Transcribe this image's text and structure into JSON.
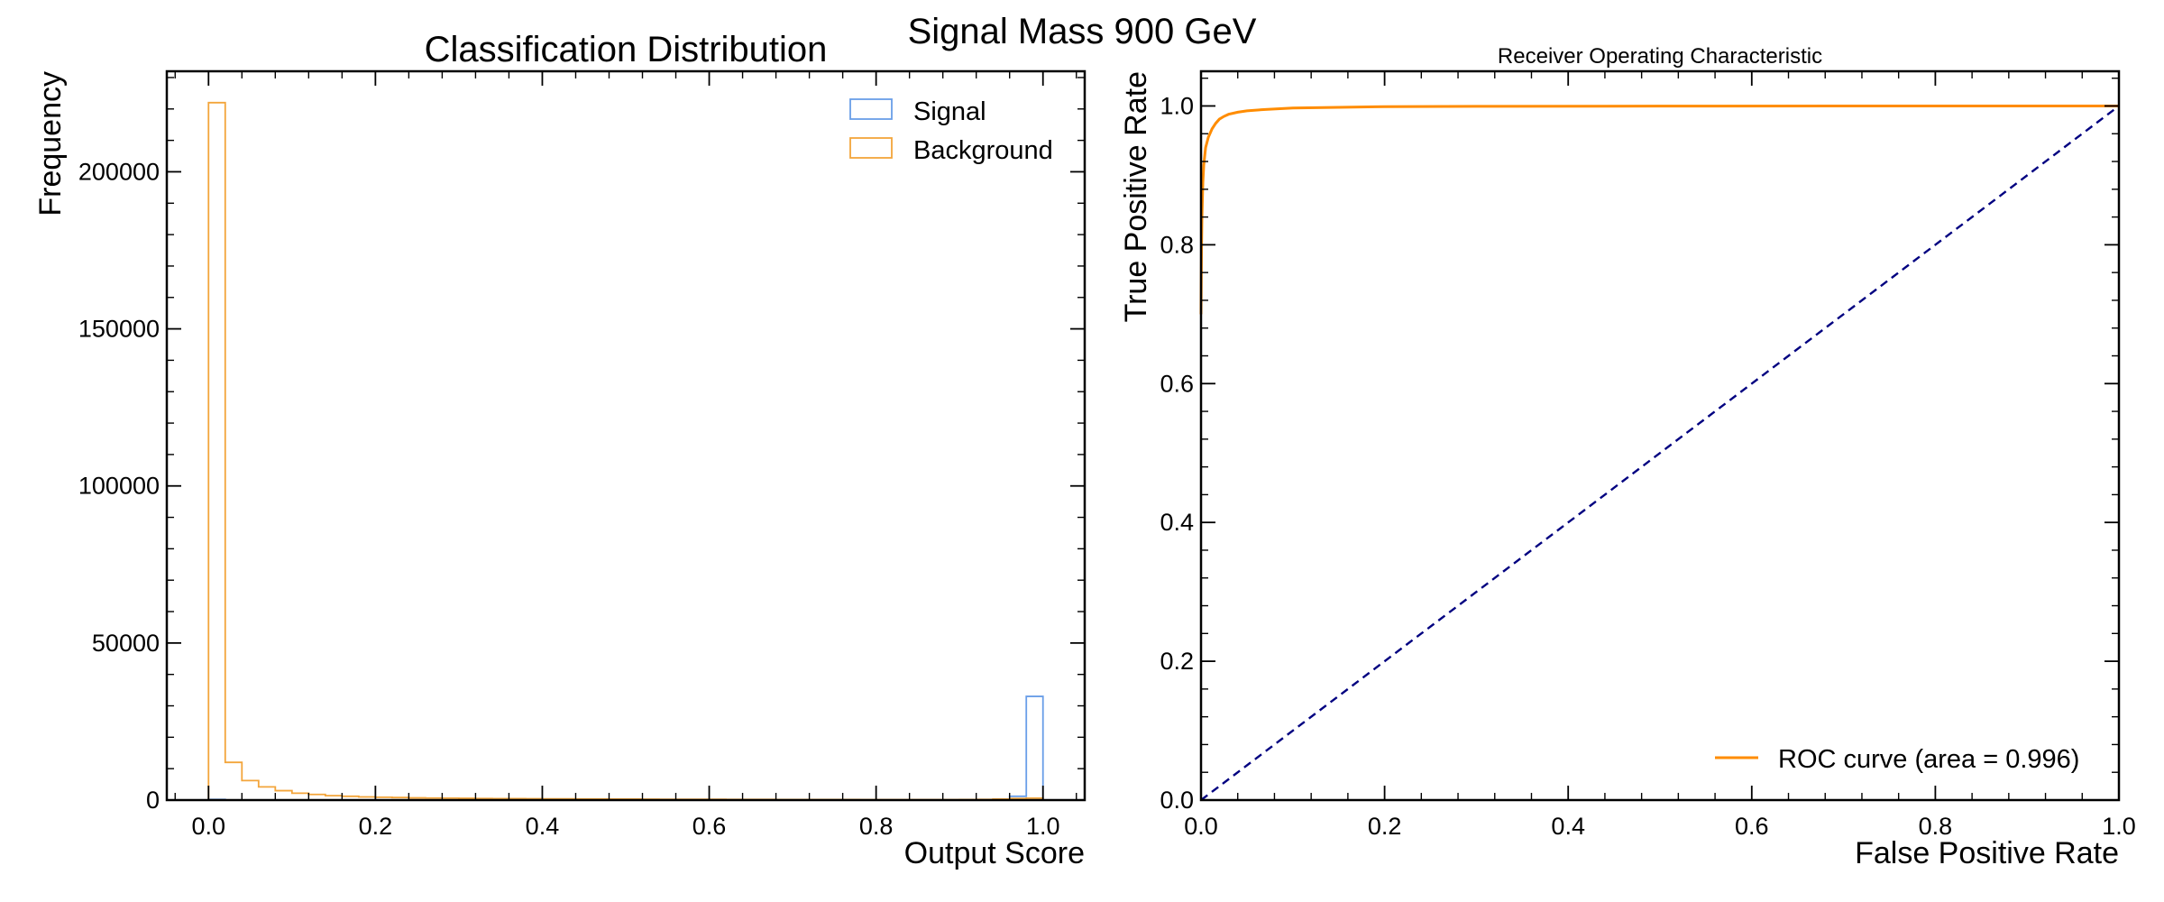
{
  "figure": {
    "suptitle": "Signal Mass 900 GeV"
  },
  "colors": {
    "signal": "#6a9ee8",
    "background": "#f3a53b",
    "roc": "#ff8c00",
    "diagonal": "#000080",
    "axes": "#000000"
  },
  "chart_data": [
    {
      "type": "histogram",
      "title": "Classification Distribution",
      "xlabel": "Output Score",
      "ylabel": "Frequency",
      "xlim": [
        -0.05,
        1.05
      ],
      "ylim": [
        0,
        232000
      ],
      "xticks": [
        0.0,
        0.2,
        0.4,
        0.6,
        0.8,
        1.0
      ],
      "xtick_labels": [
        "0.0",
        "0.2",
        "0.4",
        "0.6",
        "0.8",
        "1.0"
      ],
      "yticks": [
        0,
        50000,
        100000,
        150000,
        200000
      ],
      "ytick_labels": [
        "0",
        "50000",
        "100000",
        "150000",
        "200000"
      ],
      "legend_position": "top-right",
      "bin_edges_start": 0.0,
      "bin_width": 0.02,
      "series": [
        {
          "name": "Signal",
          "color": "#6a9ee8",
          "values": [
            200,
            0,
            0,
            0,
            0,
            0,
            0,
            0,
            0,
            0,
            0,
            0,
            0,
            0,
            0,
            0,
            0,
            0,
            0,
            0,
            0,
            0,
            0,
            0,
            0,
            0,
            0,
            0,
            0,
            0,
            0,
            0,
            0,
            0,
            0,
            0,
            0,
            0,
            0,
            0,
            0,
            0,
            0,
            0,
            0,
            0,
            0,
            50,
            1200,
            33000
          ]
        },
        {
          "name": "Background",
          "color": "#f3a53b",
          "values": [
            222000,
            12000,
            6200,
            4200,
            3000,
            2200,
            1800,
            1400,
            1200,
            1000,
            900,
            800,
            700,
            650,
            600,
            550,
            500,
            470,
            450,
            420,
            400,
            380,
            360,
            340,
            320,
            300,
            280,
            260,
            250,
            240,
            230,
            220,
            210,
            200,
            190,
            180,
            175,
            170,
            160,
            150,
            140,
            135,
            130,
            130,
            140,
            160,
            200,
            300,
            500,
            600
          ]
        }
      ]
    },
    {
      "type": "line",
      "title": "Receiver Operating Characteristic",
      "xlabel": "False Positive Rate",
      "ylabel": "True Positive Rate",
      "xlim": [
        0.0,
        1.0
      ],
      "ylim": [
        0.0,
        1.05
      ],
      "xticks": [
        0.0,
        0.2,
        0.4,
        0.6,
        0.8,
        1.0
      ],
      "xtick_labels": [
        "0.0",
        "0.2",
        "0.4",
        "0.6",
        "0.8",
        "1.0"
      ],
      "yticks": [
        0.0,
        0.2,
        0.4,
        0.6,
        0.8,
        1.0
      ],
      "ytick_labels": [
        "0.0",
        "0.2",
        "0.4",
        "0.6",
        "0.8",
        "1.0"
      ],
      "legend_position": "bottom-right",
      "series": [
        {
          "name": "ROC curve (area = 0.996)",
          "color": "#ff8c00",
          "style": "solid",
          "x": [
            0.0,
            0.0005,
            0.001,
            0.002,
            0.003,
            0.005,
            0.008,
            0.012,
            0.016,
            0.02,
            0.025,
            0.03,
            0.04,
            0.05,
            0.07,
            0.1,
            0.15,
            0.2,
            0.3,
            0.5,
            0.7,
            1.0
          ],
          "y": [
            0.7,
            0.79,
            0.84,
            0.89,
            0.915,
            0.94,
            0.955,
            0.967,
            0.975,
            0.981,
            0.985,
            0.988,
            0.991,
            0.993,
            0.995,
            0.997,
            0.998,
            0.999,
            0.9995,
            0.9998,
            1.0,
            1.0
          ]
        },
        {
          "name": "",
          "color": "#000080",
          "style": "dashed",
          "x": [
            0.0,
            1.0
          ],
          "y": [
            0.0,
            1.0
          ]
        }
      ]
    }
  ]
}
